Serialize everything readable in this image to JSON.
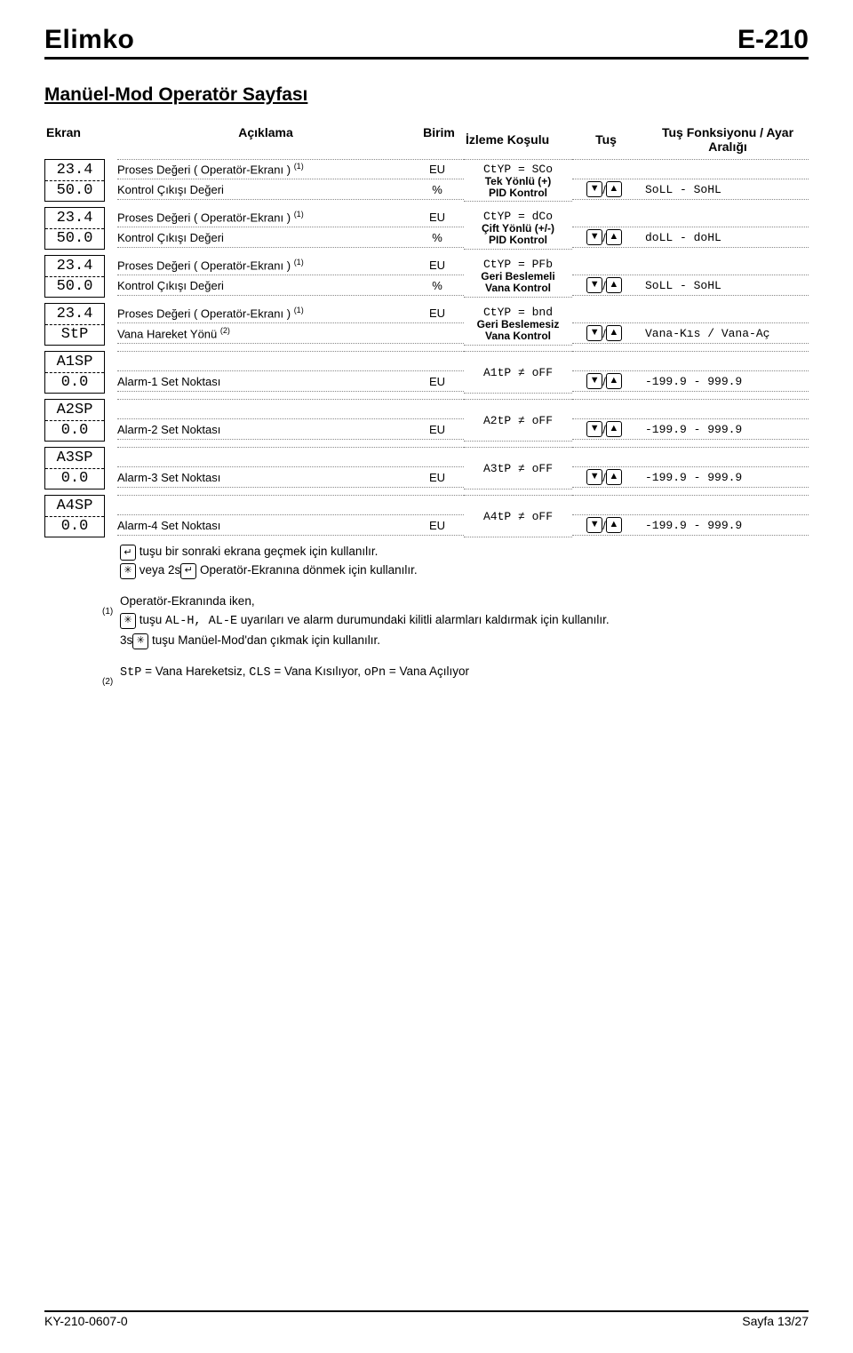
{
  "header": {
    "brand": "Elimko",
    "model": "E-210"
  },
  "page_title": "Manüel-Mod Operatör Sayfası",
  "columns": {
    "ekran": "Ekran",
    "aciklama": "Açıklama",
    "birim": "Birim",
    "izleme": "İzleme Koşulu",
    "tus": "Tuş",
    "fonks": "Tuş Fonksiyonu / Ayar Aralığı"
  },
  "rows": [
    {
      "ekran": [
        "23.4",
        "50.0"
      ],
      "lines": [
        {
          "acik": "Proses Değeri ( Operatör-Ekranı )",
          "sup": "(1)",
          "birim": "EU"
        },
        {
          "acik": "Kontrol Çıkışı Değeri",
          "birim": "%"
        }
      ],
      "izleme1": "CtYP = SCo",
      "izleme2": "Tek Yönlü (+)\nPID Kontrol",
      "tus": "▼ / ▲",
      "fonks": "SoLL - SoHL"
    },
    {
      "ekran": [
        "23.4",
        "50.0"
      ],
      "lines": [
        {
          "acik": "Proses Değeri ( Operatör-Ekranı )",
          "sup": "(1)",
          "birim": "EU"
        },
        {
          "acik": "Kontrol Çıkışı Değeri",
          "birim": "%"
        }
      ],
      "izleme1": "CtYP = dCo",
      "izleme2": "Çift Yönlü (+/-)\nPID Kontrol",
      "tus": "▼ / ▲",
      "fonks": "doLL - doHL"
    },
    {
      "ekran": [
        "23.4",
        "50.0"
      ],
      "lines": [
        {
          "acik": "Proses Değeri ( Operatör-Ekranı )",
          "sup": "(1)",
          "birim": "EU"
        },
        {
          "acik": "Kontrol Çıkışı Değeri",
          "birim": "%"
        }
      ],
      "izleme1": "CtYP = PFb",
      "izleme2": "Geri Beslemeli\nVana Kontrol",
      "tus": "▼ / ▲",
      "fonks": "SoLL - SoHL"
    },
    {
      "ekran": [
        "23.4",
        "StP"
      ],
      "lines": [
        {
          "acik": "Proses Değeri ( Operatör-Ekranı )",
          "sup": "(1)",
          "birim": "EU"
        },
        {
          "acik": "Vana Hareket Yönü",
          "sup": "(2)",
          "birim": ""
        }
      ],
      "izleme1": "CtYP = bnd",
      "izleme2": "Geri Beslemesiz\nVana Kontrol",
      "tus": "▼ / ▲",
      "fonks": "Vana-Kıs / Vana-Aç"
    }
  ],
  "alarms": [
    {
      "ekran": [
        "A1SP",
        "0.0"
      ],
      "acik": "Alarm-1 Set Noktası",
      "birim": "EU",
      "izle": "A1tP ≠ oFF",
      "tus": "▼ / ▲",
      "fonks": "-199.9 - 999.9"
    },
    {
      "ekran": [
        "A2SP",
        "0.0"
      ],
      "acik": "Alarm-2 Set Noktası",
      "birim": "EU",
      "izle": "A2tP ≠ oFF",
      "tus": "▼ / ▲",
      "fonks": "-199.9 - 999.9"
    },
    {
      "ekran": [
        "A3SP",
        "0.0"
      ],
      "acik": "Alarm-3 Set Noktası",
      "birim": "EU",
      "izle": "A3tP ≠ oFF",
      "tus": "▼ / ▲",
      "fonks": "-199.9 - 999.9"
    },
    {
      "ekran": [
        "A4SP",
        "0.0"
      ],
      "acik": "Alarm-4 Set Noktası",
      "birim": "EU",
      "izle": "A4tP ≠ oFF",
      "tus": "▼ / ▲",
      "fonks": "-199.9 - 999.9"
    }
  ],
  "notes": {
    "l1a": " tuşu bir sonraki ekrana geçmek için kullanılır.",
    "l1b_pre": " veya 2s",
    "l1b_post": " Operatör-Ekranına dönmek için kullanılır.",
    "fn1_title": "Operatör-Ekranında iken,",
    "fn1_body_pre": " tuşu ",
    "fn1_codes": "AL-H, AL-E",
    "fn1_body_post": " uyarıları ve alarm durumundaki kilitli alarmları kaldırmak için kullanılır.",
    "fn1_line3_pre": "3s",
    "fn1_line3_post": " tuşu Manüel-Mod'dan çıkmak için kullanılır.",
    "fn2_pre": "StP",
    "fn2_a": " = Vana Hareketsiz, ",
    "fn2_b": "CLS",
    "fn2_c": " = Vana Kısılıyor, ",
    "fn2_d": "oPn",
    "fn2_e": " = Vana Açılıyor"
  },
  "footer": {
    "left": "KY-210-0607-0",
    "right": "Sayfa 13/27"
  },
  "keys": {
    "down": "▼",
    "up": "▲",
    "enter": "↵",
    "star": "✳",
    "slash": " / "
  }
}
